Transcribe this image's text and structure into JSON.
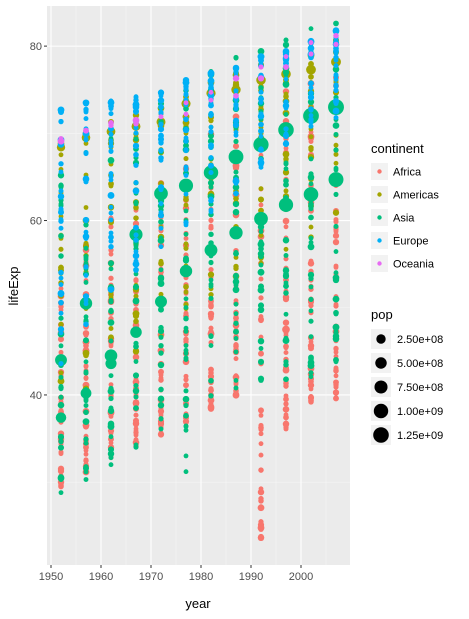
{
  "chart_data": {
    "type": "scatter",
    "title": "",
    "xlabel": "year",
    "ylabel": "lifeExp",
    "xlim": [
      1949.2,
      2009.8
    ],
    "ylim": [
      20.5,
      84.6
    ],
    "x_ticks": [
      1950,
      1960,
      1970,
      1980,
      1990,
      2000
    ],
    "x_tick_labels": [
      "1950",
      "1960",
      "1970",
      "1980",
      "1990",
      "2000"
    ],
    "y_ticks": [
      40,
      60,
      80
    ],
    "y_tick_labels": [
      "40",
      "60",
      "80"
    ],
    "years": [
      1952,
      1957,
      1962,
      1967,
      1972,
      1977,
      1982,
      1987,
      1992,
      1997,
      2002,
      2007
    ],
    "grid": true,
    "legend_position": "right",
    "color_legend": {
      "title": "continent",
      "entries": [
        {
          "label": "Africa",
          "color": "#F8766D"
        },
        {
          "label": "Americas",
          "color": "#A3A500"
        },
        {
          "label": "Asia",
          "color": "#00BF7D"
        },
        {
          "label": "Europe",
          "color": "#00B0F6"
        },
        {
          "label": "Oceania",
          "color": "#E76BF3"
        }
      ]
    },
    "size_legend": {
      "title": "pop",
      "entries": [
        {
          "label": "2.50e+08",
          "value": 250000000
        },
        {
          "label": "5.00e+08",
          "value": 500000000
        },
        {
          "label": "7.50e+08",
          "value": 750000000
        },
        {
          "label": "1.00e+09",
          "value": 1000000000
        },
        {
          "label": "1.25e+09",
          "value": 1250000000
        }
      ]
    },
    "series": [
      {
        "name": "Africa",
        "ranges": [
          [
            29.5,
            52.7
          ],
          [
            31.1,
            58.1
          ],
          [
            32.8,
            60.3
          ],
          [
            34.1,
            61.6
          ],
          [
            35.4,
            64.3
          ],
          [
            36.8,
            67.1
          ],
          [
            38.4,
            69.9
          ],
          [
            39.9,
            71.9
          ],
          [
            23.6,
            73.6
          ],
          [
            36.1,
            74.8
          ],
          [
            39.2,
            75.7
          ],
          [
            39.6,
            76.4
          ]
        ],
        "big_points": [
          [
            1952,
            37.4,
            40000000
          ],
          [
            1997,
            47.5,
            110000000
          ]
        ]
      },
      {
        "name": "Americas",
        "ranges": [
          [
            37.6,
            68.8
          ],
          [
            40.7,
            70.0
          ],
          [
            43.4,
            71.3
          ],
          [
            45.0,
            72.1
          ],
          [
            46.7,
            72.9
          ],
          [
            49.9,
            74.2
          ],
          [
            51.5,
            75.8
          ],
          [
            53.6,
            76.9
          ],
          [
            55.1,
            77.9
          ],
          [
            56.7,
            78.6
          ],
          [
            58.1,
            79.8
          ],
          [
            60.9,
            80.7
          ]
        ],
        "big_points": [
          [
            1952,
            68.4,
            157000000
          ],
          [
            1957,
            69.5,
            172000000
          ],
          [
            1962,
            70.2,
            187000000
          ],
          [
            1967,
            70.8,
            199000000
          ],
          [
            1972,
            71.3,
            210000000
          ],
          [
            1977,
            73.4,
            220000000
          ],
          [
            1982,
            74.6,
            232000000
          ],
          [
            1987,
            75.0,
            243000000
          ],
          [
            1992,
            76.1,
            257000000
          ],
          [
            1997,
            76.8,
            272000000
          ],
          [
            2002,
            77.3,
            288000000
          ],
          [
            2007,
            78.2,
            301000000
          ]
        ]
      },
      {
        "name": "Asia",
        "ranges": [
          [
            28.8,
            65.4
          ],
          [
            30.3,
            67.8
          ],
          [
            32.0,
            69.4
          ],
          [
            34.0,
            71.4
          ],
          [
            36.1,
            73.4
          ],
          [
            31.2,
            75.4
          ],
          [
            39.9,
            77.1
          ],
          [
            40.8,
            78.7
          ],
          [
            41.7,
            79.4
          ],
          [
            41.8,
            80.7
          ],
          [
            42.1,
            82.0
          ],
          [
            43.8,
            82.6
          ]
        ],
        "big_points": [
          [
            1952,
            44.0,
            556000000
          ],
          [
            1952,
            37.4,
            372000000
          ],
          [
            1957,
            50.5,
            637000000
          ],
          [
            1957,
            40.2,
            409000000
          ],
          [
            1962,
            44.5,
            665000000
          ],
          [
            1962,
            43.6,
            454000000
          ],
          [
            1967,
            58.4,
            754000000
          ],
          [
            1967,
            47.2,
            506000000
          ],
          [
            1972,
            63.1,
            862000000
          ],
          [
            1972,
            50.7,
            567000000
          ],
          [
            1977,
            64.0,
            943000000
          ],
          [
            1977,
            54.2,
            634000000
          ],
          [
            1982,
            65.5,
            1000000000
          ],
          [
            1982,
            56.6,
            708000000
          ],
          [
            1987,
            67.3,
            1084000000
          ],
          [
            1987,
            58.6,
            788000000
          ],
          [
            1992,
            68.7,
            1165000000
          ],
          [
            1992,
            60.2,
            872000000
          ],
          [
            1997,
            70.4,
            1230000000
          ],
          [
            1997,
            61.8,
            959000000
          ],
          [
            2002,
            72.0,
            1280000000
          ],
          [
            2002,
            63.0,
            1034000000
          ],
          [
            2007,
            73.0,
            1319000000
          ],
          [
            2007,
            64.7,
            1110000000
          ]
        ]
      },
      {
        "name": "Europe",
        "ranges": [
          [
            43.6,
            72.7
          ],
          [
            48.1,
            73.5
          ],
          [
            52.1,
            73.7
          ],
          [
            54.3,
            74.2
          ],
          [
            57.0,
            74.7
          ],
          [
            59.5,
            76.1
          ],
          [
            61.0,
            76.9
          ],
          [
            63.1,
            77.5
          ],
          [
            66.1,
            78.8
          ],
          [
            68.8,
            79.4
          ],
          [
            70.8,
            80.6
          ],
          [
            71.8,
            81.8
          ]
        ],
        "big_points": []
      },
      {
        "name": "Oceania",
        "ranges": [
          [
            69.1,
            69.4
          ],
          [
            70.3,
            70.3
          ],
          [
            70.9,
            71.2
          ],
          [
            71.1,
            71.5
          ],
          [
            71.9,
            71.9
          ],
          [
            72.2,
            73.5
          ],
          [
            73.8,
            74.7
          ],
          [
            74.3,
            76.3
          ],
          [
            76.3,
            77.6
          ],
          [
            77.6,
            78.8
          ],
          [
            79.1,
            80.4
          ],
          [
            80.2,
            81.2
          ]
        ],
        "big_points": []
      }
    ]
  }
}
